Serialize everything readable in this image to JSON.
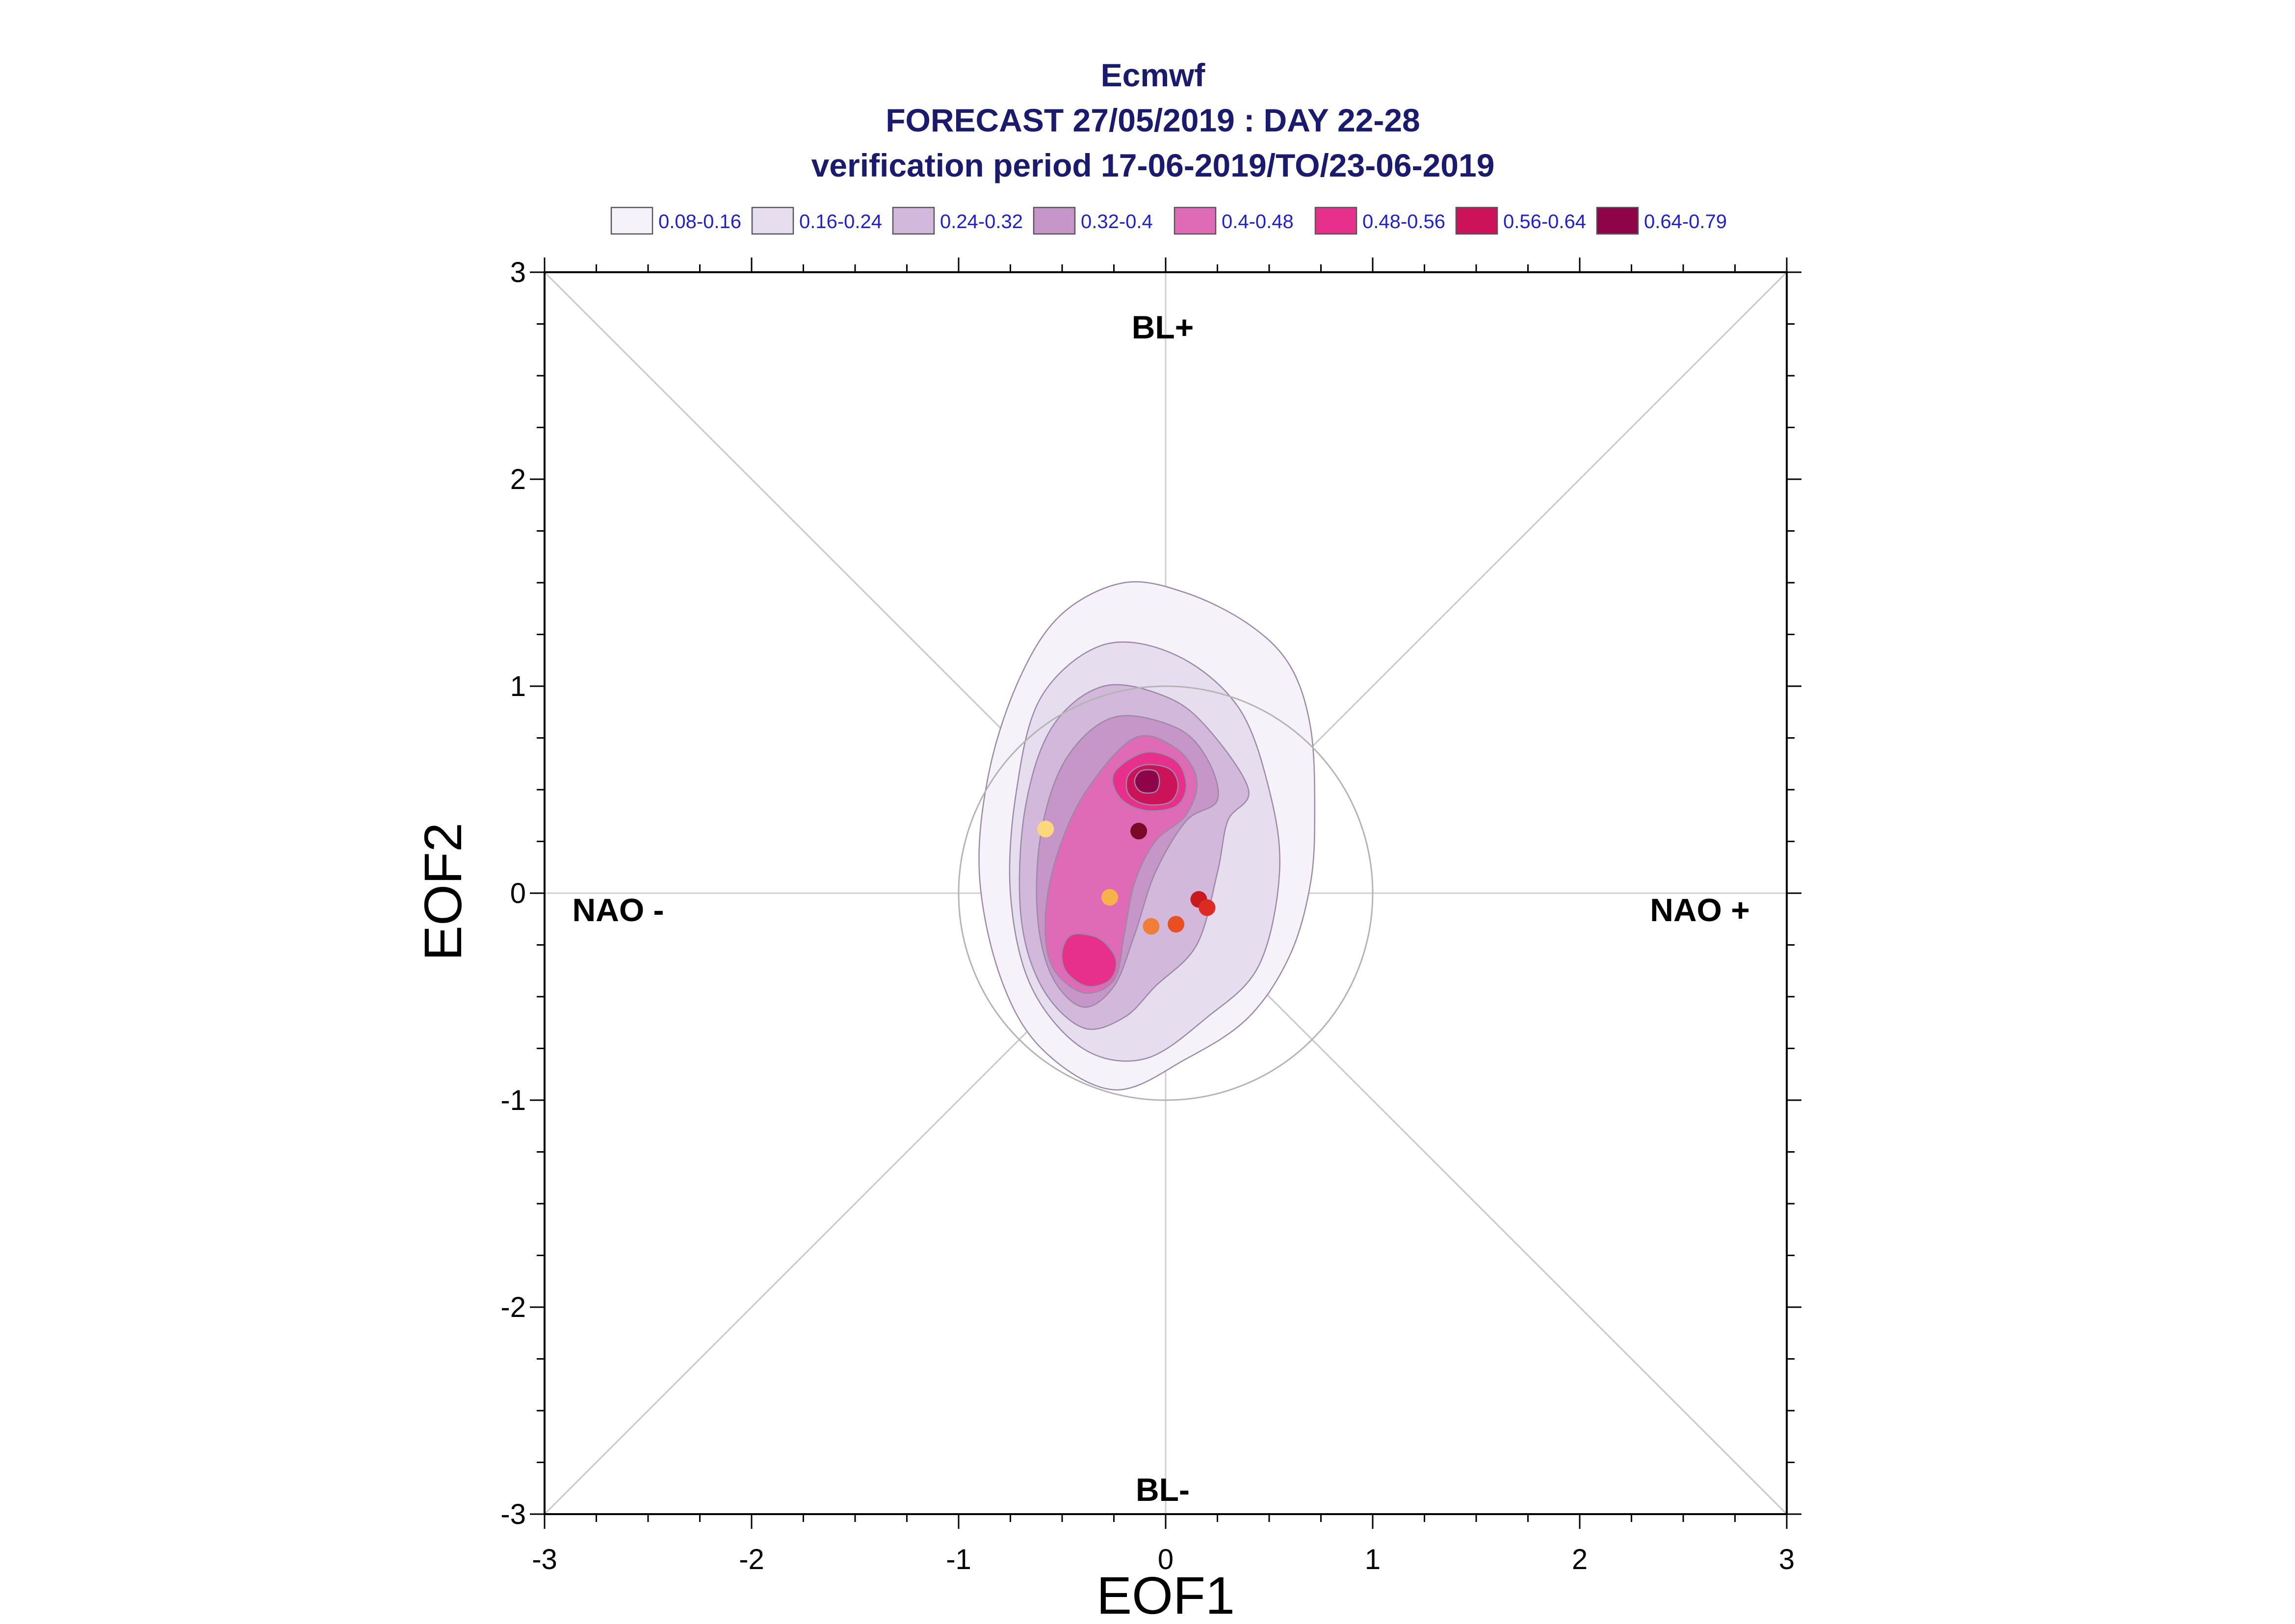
{
  "chart_data": {
    "type": "contour",
    "title_lines": [
      "Ecmwf",
      "FORECAST 27/05/2019 : DAY 22-28",
      "verification period 17-06-2019/TO/23-06-2019"
    ],
    "xlabel": "EOF1",
    "ylabel": "EOF2",
    "xlim": [
      -3,
      3
    ],
    "ylim": [
      -3,
      3
    ],
    "x_ticks": [
      "-3",
      "-2",
      "-1",
      "0",
      "1",
      "2",
      "3"
    ],
    "y_ticks": [
      "-3",
      "-2",
      "-1",
      "0",
      "1",
      "2",
      "3"
    ],
    "regime_labels": {
      "top": "BL+",
      "bottom": "BL-",
      "left": "NAO -",
      "right": "NAO +"
    },
    "legend": [
      {
        "label": "0.08-0.16",
        "color": "#f5f3f9"
      },
      {
        "label": "0.16-0.24",
        "color": "#e6ddee"
      },
      {
        "label": "0.24-0.32",
        "color": "#d2b8da"
      },
      {
        "label": "0.32-0.4",
        "color": "#c796c9"
      },
      {
        "label": "0.4-0.48",
        "color": "#df6bb6"
      },
      {
        "label": "0.48-0.56",
        "color": "#e7308c"
      },
      {
        "label": "0.56-0.64",
        "color": "#cc1259"
      },
      {
        "label": "0.64-0.79",
        "color": "#8f0348"
      }
    ],
    "reference_circle_radius": 1.0,
    "density_levels": [
      {
        "level": 0.08,
        "color": "#f5f3f9",
        "polygons": [
          [
            [
              -0.2,
              1.5
            ],
            [
              0.1,
              1.45
            ],
            [
              0.4,
              1.3
            ],
            [
              0.6,
              1.1
            ],
            [
              0.7,
              0.8
            ],
            [
              0.72,
              0.4
            ],
            [
              0.7,
              0.05
            ],
            [
              0.6,
              -0.3
            ],
            [
              0.4,
              -0.6
            ],
            [
              0.1,
              -0.8
            ],
            [
              -0.25,
              -0.95
            ],
            [
              -0.6,
              -0.75
            ],
            [
              -0.8,
              -0.4
            ],
            [
              -0.9,
              0.1
            ],
            [
              -0.85,
              0.6
            ],
            [
              -0.7,
              1.05
            ],
            [
              -0.5,
              1.35
            ]
          ]
        ]
      },
      {
        "level": 0.16,
        "color": "#e6ddee",
        "polygons": [
          [
            [
              -0.3,
              1.2
            ],
            [
              0.05,
              1.15
            ],
            [
              0.35,
              0.9
            ],
            [
              0.5,
              0.5
            ],
            [
              0.55,
              0.1
            ],
            [
              0.45,
              -0.35
            ],
            [
              0.2,
              -0.6
            ],
            [
              -0.1,
              -0.8
            ],
            [
              -0.4,
              -0.75
            ],
            [
              -0.65,
              -0.45
            ],
            [
              -0.75,
              0.0
            ],
            [
              -0.72,
              0.5
            ],
            [
              -0.6,
              0.95
            ]
          ]
        ]
      },
      {
        "level": 0.24,
        "color": "#d2b8da",
        "polygons": [
          [
            [
              -0.3,
              1.0
            ],
            [
              0.0,
              0.95
            ],
            [
              0.2,
              0.8
            ],
            [
              0.4,
              0.5
            ],
            [
              0.3,
              0.35
            ],
            [
              0.25,
              0.1
            ],
            [
              0.15,
              -0.25
            ],
            [
              -0.05,
              -0.45
            ],
            [
              -0.2,
              -0.6
            ],
            [
              -0.4,
              -0.65
            ],
            [
              -0.6,
              -0.45
            ],
            [
              -0.7,
              -0.1
            ],
            [
              -0.68,
              0.4
            ],
            [
              -0.55,
              0.8
            ]
          ]
        ]
      },
      {
        "level": 0.32,
        "color": "#c796c9",
        "polygons": [
          [
            [
              -0.25,
              0.85
            ],
            [
              0.05,
              0.8
            ],
            [
              0.2,
              0.65
            ],
            [
              0.25,
              0.45
            ],
            [
              0.1,
              0.35
            ],
            [
              -0.05,
              0.1
            ],
            [
              -0.15,
              -0.2
            ],
            [
              -0.25,
              -0.45
            ],
            [
              -0.4,
              -0.55
            ],
            [
              -0.55,
              -0.4
            ],
            [
              -0.62,
              -0.1
            ],
            [
              -0.6,
              0.3
            ],
            [
              -0.48,
              0.65
            ]
          ]
        ]
      },
      {
        "level": 0.4,
        "color": "#df6bb6",
        "polygons": [
          [
            [
              -0.15,
              0.75
            ],
            [
              0.05,
              0.7
            ],
            [
              0.15,
              0.55
            ],
            [
              0.1,
              0.38
            ],
            [
              -0.05,
              0.25
            ],
            [
              -0.15,
              0.05
            ],
            [
              -0.2,
              -0.2
            ],
            [
              -0.25,
              -0.42
            ],
            [
              -0.4,
              -0.48
            ],
            [
              -0.55,
              -0.35
            ],
            [
              -0.58,
              -0.1
            ],
            [
              -0.52,
              0.2
            ],
            [
              -0.38,
              0.5
            ]
          ]
        ]
      },
      {
        "level": 0.48,
        "color": "#e7308c",
        "polygons": [
          [
            [
              -0.1,
              0.68
            ],
            [
              0.05,
              0.64
            ],
            [
              0.1,
              0.52
            ],
            [
              0.05,
              0.42
            ],
            [
              -0.1,
              0.4
            ],
            [
              -0.22,
              0.46
            ],
            [
              -0.25,
              0.58
            ]
          ],
          [
            [
              -0.45,
              -0.2
            ],
            [
              -0.32,
              -0.22
            ],
            [
              -0.24,
              -0.32
            ],
            [
              -0.27,
              -0.42
            ],
            [
              -0.38,
              -0.45
            ],
            [
              -0.48,
              -0.38
            ],
            [
              -0.5,
              -0.28
            ]
          ]
        ]
      },
      {
        "level": 0.56,
        "color": "#cc1259",
        "polygons": [
          [
            [
              -0.1,
              0.62
            ],
            [
              0.02,
              0.6
            ],
            [
              0.06,
              0.52
            ],
            [
              0.02,
              0.44
            ],
            [
              -0.1,
              0.43
            ],
            [
              -0.18,
              0.48
            ],
            [
              -0.18,
              0.57
            ]
          ]
        ]
      },
      {
        "level": 0.64,
        "color": "#8f0348",
        "polygons": [
          [
            [
              -0.12,
              0.59
            ],
            [
              -0.05,
              0.59
            ],
            [
              -0.03,
              0.54
            ],
            [
              -0.05,
              0.49
            ],
            [
              -0.12,
              0.49
            ],
            [
              -0.15,
              0.54
            ]
          ]
        ]
      }
    ],
    "points": [
      {
        "x": -0.58,
        "y": 0.31,
        "color": "#fbd87a"
      },
      {
        "x": -0.27,
        "y": -0.02,
        "color": "#f7b24a"
      },
      {
        "x": -0.07,
        "y": -0.16,
        "color": "#f07e38"
      },
      {
        "x": 0.05,
        "y": -0.15,
        "color": "#e84f22"
      },
      {
        "x": -0.13,
        "y": 0.3,
        "color": "#7a0a26"
      },
      {
        "x": 0.16,
        "y": -0.03,
        "color": "#c81a1e"
      },
      {
        "x": 0.2,
        "y": -0.07,
        "color": "#dd2a22"
      }
    ]
  }
}
